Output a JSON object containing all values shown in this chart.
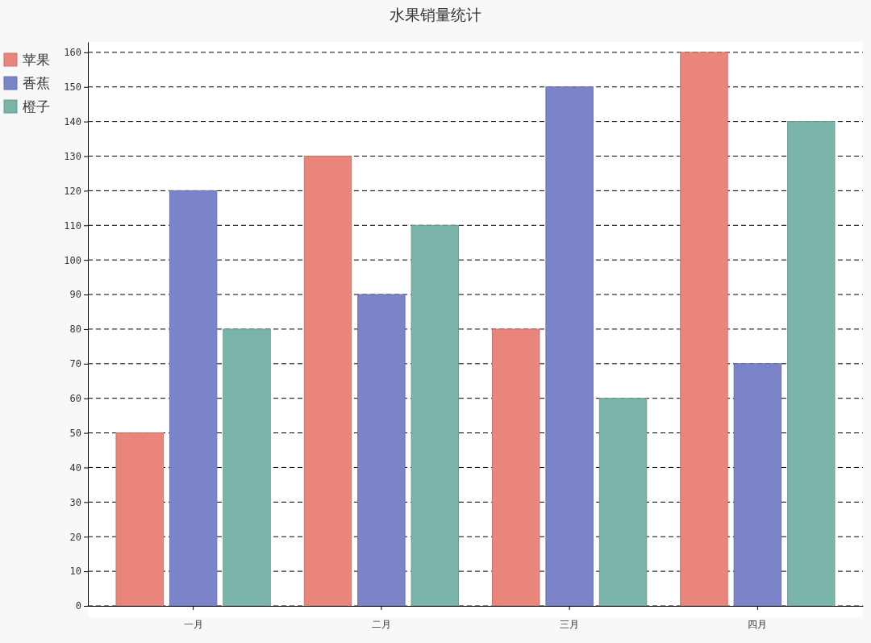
{
  "chart_data": {
    "type": "bar",
    "title": "水果销量统计",
    "categories": [
      "一月",
      "二月",
      "三月",
      "四月"
    ],
    "series": [
      {
        "name": "苹果",
        "color": "#e9857a",
        "values": [
          50,
          130,
          80,
          160
        ]
      },
      {
        "name": "香蕉",
        "color": "#7b83c9",
        "values": [
          120,
          90,
          150,
          70
        ]
      },
      {
        "name": "橙子",
        "color": "#7bb5aa",
        "values": [
          80,
          110,
          60,
          140
        ]
      }
    ],
    "ylim": [
      0,
      163
    ],
    "yticks": [
      0,
      10,
      20,
      30,
      40,
      50,
      60,
      70,
      80,
      90,
      100,
      110,
      120,
      130,
      140,
      150,
      160
    ],
    "grid": "y",
    "legend": "top left",
    "line_style": "dashed"
  }
}
